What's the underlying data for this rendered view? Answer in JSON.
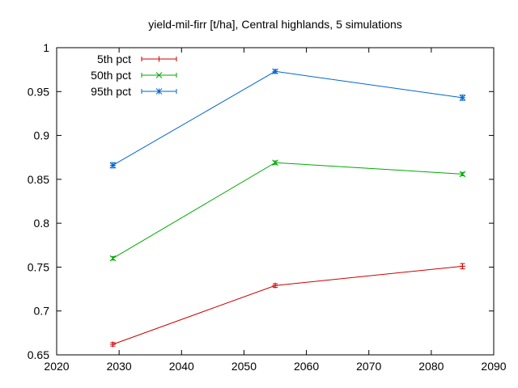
{
  "chart_data": {
    "type": "line",
    "title": "yield-mil-firr [t/ha], Central highlands, 5 simulations",
    "xlabel": "",
    "ylabel": "",
    "xlim": [
      2020,
      2090
    ],
    "ylim": [
      0.65,
      1.0
    ],
    "xticks": [
      2020,
      2030,
      2040,
      2050,
      2060,
      2070,
      2080,
      2090
    ],
    "yticks": [
      0.65,
      0.7,
      0.75,
      0.8,
      0.85,
      0.9,
      0.95,
      1.0
    ],
    "ytick_labels": [
      "0.65",
      "0.7",
      "0.75",
      "0.8",
      "0.85",
      "0.9",
      "0.95",
      "1"
    ],
    "grid": false,
    "legend_position": "top-left",
    "x": [
      2029,
      2055,
      2085
    ],
    "series": [
      {
        "name": "5th pct",
        "color": "#cc0000",
        "marker": "plus",
        "values": [
          0.662,
          0.729,
          0.751
        ],
        "errors": [
          0.002,
          0.002,
          0.003
        ]
      },
      {
        "name": "50th pct",
        "color": "#00aa00",
        "marker": "cross",
        "values": [
          0.76,
          0.869,
          0.856
        ],
        "errors": [
          0.002,
          0.002,
          0.002
        ]
      },
      {
        "name": "95th pct",
        "color": "#0066cc",
        "marker": "star",
        "values": [
          0.866,
          0.973,
          0.943
        ],
        "errors": [
          0.003,
          0.002,
          0.003
        ]
      }
    ]
  }
}
